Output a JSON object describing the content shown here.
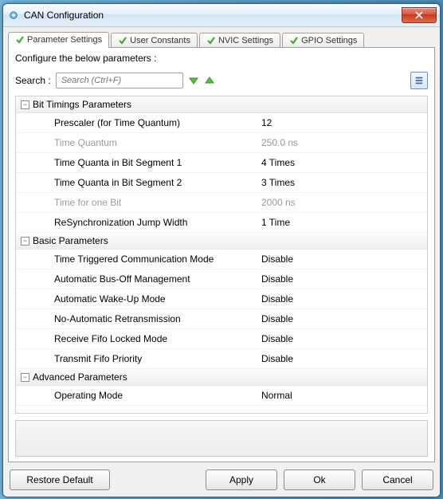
{
  "colors": {
    "window_border": "#2e5f86",
    "titlebar_grad": [
      "#f9fcff",
      "#e6f0fa",
      "#d2e4f2",
      "#e3f0fb"
    ],
    "close_grad": [
      "#e78f87",
      "#d5583d",
      "#c53a1f",
      "#e16d49"
    ],
    "tab_border": "#9f9f9f",
    "disabled_text": "#9a9a9a"
  },
  "window": {
    "title": "CAN Configuration"
  },
  "tabs": [
    {
      "label": "Parameter Settings",
      "active": true
    },
    {
      "label": "User Constants",
      "active": false
    },
    {
      "label": "NVIC Settings",
      "active": false
    },
    {
      "label": "GPIO Settings",
      "active": false
    }
  ],
  "panel": {
    "configure_label": "Configure the below parameters :",
    "search_label": "Search :",
    "search_placeholder": "Search (Ctrl+F)"
  },
  "groups": [
    {
      "title": "Bit Timings Parameters",
      "rows": [
        {
          "label": "Prescaler (for Time Quantum)",
          "value": "12",
          "disabled": false
        },
        {
          "label": "Time Quantum",
          "value": "250.0 ns",
          "disabled": true
        },
        {
          "label": "Time Quanta in Bit Segment 1",
          "value": "4 Times",
          "disabled": false
        },
        {
          "label": "Time Quanta in Bit Segment 2",
          "value": "3 Times",
          "disabled": false
        },
        {
          "label": "Time for one Bit",
          "value": "2000 ns",
          "disabled": true
        },
        {
          "label": "ReSynchronization Jump Width",
          "value": "1 Time",
          "disabled": false
        }
      ]
    },
    {
      "title": "Basic Parameters",
      "rows": [
        {
          "label": "Time Triggered Communication Mode",
          "value": "Disable",
          "disabled": false
        },
        {
          "label": "Automatic Bus-Off Management",
          "value": "Disable",
          "disabled": false
        },
        {
          "label": "Automatic Wake-Up Mode",
          "value": "Disable",
          "disabled": false
        },
        {
          "label": "No-Automatic Retransmission",
          "value": "Disable",
          "disabled": false
        },
        {
          "label": "Receive Fifo Locked Mode",
          "value": "Disable",
          "disabled": false
        },
        {
          "label": "Transmit Fifo Priority",
          "value": "Disable",
          "disabled": false
        }
      ]
    },
    {
      "title": "Advanced Parameters",
      "rows": [
        {
          "label": "Operating Mode",
          "value": "Normal",
          "disabled": false
        }
      ]
    }
  ],
  "buttons": {
    "restore": "Restore Default",
    "apply": "Apply",
    "ok": "Ok",
    "cancel": "Cancel"
  }
}
